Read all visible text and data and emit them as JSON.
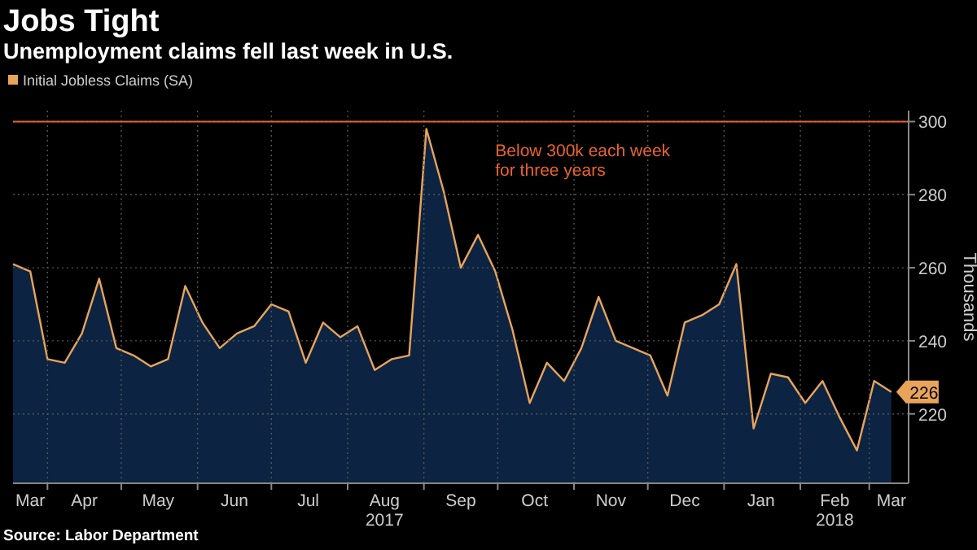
{
  "chart_data": {
    "type": "area",
    "title": "Jobs Tight",
    "subtitle": "Unemployment claims fell last week in U.S.",
    "ylabel": "Thousands",
    "annotations": [
      "Below 300k each week\nfor three years",
      "Source: Labor Department"
    ],
    "x": [
      "2017-03-18",
      "2017-03-25",
      "2017-04-01",
      "2017-04-08",
      "2017-04-15",
      "2017-04-22",
      "2017-04-29",
      "2017-05-06",
      "2017-05-13",
      "2017-05-20",
      "2017-05-27",
      "2017-06-03",
      "2017-06-10",
      "2017-06-17",
      "2017-06-24",
      "2017-07-01",
      "2017-07-08",
      "2017-07-15",
      "2017-07-22",
      "2017-07-29",
      "2017-08-05",
      "2017-08-12",
      "2017-08-19",
      "2017-08-26",
      "2017-09-02",
      "2017-09-09",
      "2017-09-16",
      "2017-09-23",
      "2017-09-30",
      "2017-10-07",
      "2017-10-14",
      "2017-10-21",
      "2017-10-28",
      "2017-11-04",
      "2017-11-11",
      "2017-11-18",
      "2017-11-25",
      "2017-12-02",
      "2017-12-09",
      "2017-12-16",
      "2017-12-23",
      "2017-12-30",
      "2018-01-06",
      "2018-01-13",
      "2018-01-20",
      "2018-01-27",
      "2018-02-03",
      "2018-02-10",
      "2018-02-17",
      "2018-02-24",
      "2018-03-03",
      "2018-03-10"
    ],
    "series": [
      {
        "name": "Initial Jobless Claims (SA)",
        "color": "#e8a45a",
        "values": [
          261,
          259,
          235,
          234,
          242,
          257,
          238,
          236,
          233,
          235,
          255,
          245,
          238,
          242,
          244,
          250,
          248,
          234,
          245,
          241,
          244,
          232,
          235,
          236,
          298,
          281,
          260,
          269,
          259,
          243,
          223,
          234,
          229,
          238,
          252,
          240,
          238,
          236,
          225,
          245,
          247,
          250,
          261,
          216,
          231,
          230,
          223,
          229,
          219,
          210,
          229,
          226
        ],
        "value_labels": [
          null,
          null,
          null,
          null,
          null,
          null,
          null,
          null,
          null,
          null,
          null,
          null,
          null,
          null,
          null,
          null,
          null,
          null,
          null,
          null,
          null,
          null,
          null,
          null,
          null,
          null,
          null,
          null,
          null,
          null,
          null,
          null,
          null,
          null,
          null,
          null,
          null,
          null,
          null,
          null,
          null,
          null,
          null,
          null,
          null,
          null,
          null,
          null,
          null,
          null,
          null,
          "226"
        ]
      }
    ],
    "xlim": [
      "2017-03-18",
      "2018-03-17"
    ],
    "xticks": [
      {
        "value": "2017-04-01",
        "label": null
      },
      {
        "value": "2017-05-01",
        "label": null
      },
      {
        "value": "2017-06-01",
        "label": null
      },
      {
        "value": "2017-07-01",
        "label": null
      },
      {
        "value": "2017-08-01",
        "label": null
      },
      {
        "value": "2017-09-01",
        "label": null
      },
      {
        "value": "2017-10-01",
        "label": null
      },
      {
        "value": "2017-11-01",
        "label": null
      },
      {
        "value": "2017-12-01",
        "label": null
      },
      {
        "value": "2018-01-01",
        "label": null
      },
      {
        "value": "2018-02-01",
        "label": null
      },
      {
        "value": "2018-03-01",
        "label": null
      },
      {
        "value": "2017-03-25",
        "label": "Mar"
      },
      {
        "value": "2017-04-16",
        "label": "Apr"
      },
      {
        "value": "2017-05-16",
        "label": "May"
      },
      {
        "value": "2017-06-16",
        "label": "Jun"
      },
      {
        "value": "2017-07-16",
        "label": "Jul"
      },
      {
        "value": "2017-08-16",
        "label": "Aug\n2017"
      },
      {
        "value": "2017-09-16",
        "label": "Sep"
      },
      {
        "value": "2017-10-16",
        "label": "Oct"
      },
      {
        "value": "2017-11-16",
        "label": "Nov"
      },
      {
        "value": "2017-12-16",
        "label": "Dec"
      },
      {
        "value": "2018-01-16",
        "label": "Jan"
      },
      {
        "value": "2018-02-15",
        "label": "Feb\n2018"
      },
      {
        "value": "2018-03-10",
        "label": "Mar"
      }
    ],
    "ylim": [
      201,
      303
    ],
    "yticks": [
      220,
      240,
      260,
      280,
      300
    ],
    "ref_lines": [
      {
        "axis": "y",
        "value": 300,
        "color": "#e8642c"
      }
    ],
    "grid": true,
    "legend": "top left"
  }
}
